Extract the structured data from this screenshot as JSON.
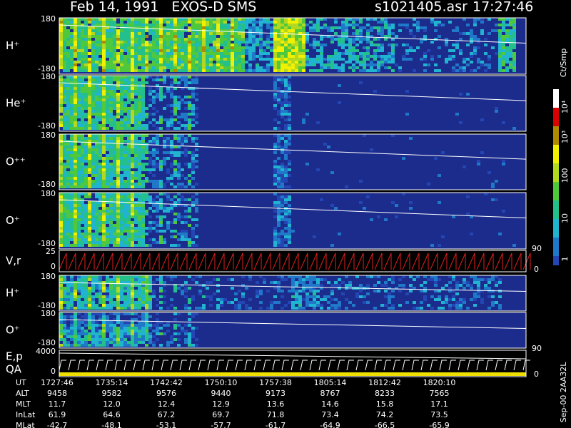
{
  "header": {
    "title": "Feb 14, 1991   EXOS-D SMS",
    "file": "s1021405.asr",
    "time": "17:27:46"
  },
  "panels": [
    {
      "label": "H⁺",
      "ticks": [
        "180",
        "-180"
      ]
    },
    {
      "label": "He⁺",
      "ticks": [
        "180",
        "-180"
      ]
    },
    {
      "label": "O⁺⁺",
      "ticks": [
        "180",
        "-180"
      ]
    },
    {
      "label": "O⁺",
      "ticks": [
        "180",
        "-180"
      ]
    },
    {
      "label": "V,r",
      "ticks": [
        "25",
        "0"
      ],
      "right_ticks": [
        "90",
        "0"
      ]
    },
    {
      "label": "H⁺",
      "ticks": [
        "180",
        "-180"
      ]
    },
    {
      "label": "O⁺",
      "ticks": [
        "180",
        "-180"
      ]
    },
    {
      "label": "E,p",
      "label2": "QA",
      "ticks": [
        "4000",
        "0"
      ],
      "right_ticks": [
        "90",
        "0"
      ]
    }
  ],
  "colorbar": {
    "unit": "Ct/Smp",
    "labels": [
      "10⁴",
      "10³",
      "100",
      "10",
      "1"
    ]
  },
  "footer": {
    "rows": [
      {
        "label": "UT",
        "values": [
          "1727:46",
          "1735:14",
          "1742:42",
          "1750:10",
          "1757:38",
          "1805:14",
          "1812:42",
          "1820:10"
        ]
      },
      {
        "label": "ALT",
        "values": [
          "9458",
          "9582",
          "9576",
          "9440",
          "9173",
          "8767",
          "8233",
          "7565"
        ]
      },
      {
        "label": "MLT",
        "values": [
          "11.7",
          "12.0",
          "12.4",
          "12.9",
          "13.6",
          "14.6",
          "15.8",
          "17.1"
        ]
      },
      {
        "label": "InLat",
        "values": [
          "61.9",
          "64.6",
          "67.2",
          "69.7",
          "71.8",
          "73.4",
          "74.2",
          "73.5"
        ]
      },
      {
        "label": "MLat",
        "values": [
          "-42.7",
          "-48.1",
          "-53.1",
          "-57.7",
          "-61.7",
          "-64.9",
          "-66.5",
          "-65.9"
        ]
      }
    ]
  },
  "stamp": "Sep-00  2AA32L"
}
